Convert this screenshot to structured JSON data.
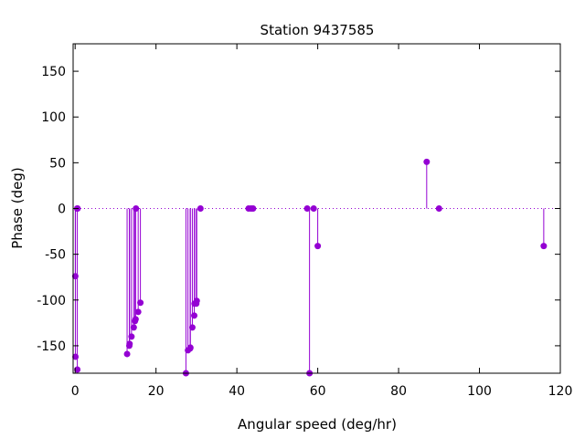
{
  "chart_data": {
    "type": "stem",
    "title": "Station 9437585",
    "xlabel": "Angular speed (deg/hr)",
    "ylabel": "Phase (deg)",
    "xlim": [
      -0.5,
      120
    ],
    "ylim": [
      -180,
      180
    ],
    "xticks": [
      0,
      20,
      40,
      60,
      80,
      100,
      120
    ],
    "yticks": [
      -150,
      -100,
      -50,
      0,
      50,
      100,
      150
    ],
    "xtick_labels": [
      "0",
      "20",
      "40",
      "60",
      "80",
      "100",
      "120"
    ],
    "ytick_labels": [
      "-150",
      "-100",
      "-50",
      "0",
      "50",
      "100",
      "150"
    ],
    "zero_line": "dotted",
    "color": "#9400d3",
    "series": [
      {
        "points": [
          {
            "x": 0.04,
            "y": -74
          },
          {
            "x": 0.08,
            "y": -162
          },
          {
            "x": 0.5,
            "y": 0
          },
          {
            "x": 0.54,
            "y": -176
          },
          {
            "x": 0.6,
            "y": 0
          },
          {
            "x": 12.85,
            "y": -159
          },
          {
            "x": 13.4,
            "y": -150
          },
          {
            "x": 13.47,
            "y": -148
          },
          {
            "x": 13.94,
            "y": -140
          },
          {
            "x": 14.5,
            "y": -130
          },
          {
            "x": 14.8,
            "y": -123
          },
          {
            "x": 14.96,
            "y": -121
          },
          {
            "x": 15.04,
            "y": 0
          },
          {
            "x": 15.59,
            "y": -113
          },
          {
            "x": 16.14,
            "y": -103
          },
          {
            "x": 27.4,
            "y": -180
          },
          {
            "x": 27.9,
            "y": -155
          },
          {
            "x": 28.44,
            "y": -153
          },
          {
            "x": 28.51,
            "y": -152
          },
          {
            "x": 28.99,
            "y": -130
          },
          {
            "x": 29.46,
            "y": -117
          },
          {
            "x": 29.53,
            "y": -104
          },
          {
            "x": 29.96,
            "y": -104
          },
          {
            "x": 30.08,
            "y": -101
          },
          {
            "x": 31.0,
            "y": 0
          },
          {
            "x": 42.9,
            "y": 0
          },
          {
            "x": 43.5,
            "y": 0
          },
          {
            "x": 44.0,
            "y": 0
          },
          {
            "x": 57.4,
            "y": 0
          },
          {
            "x": 57.97,
            "y": -180
          },
          {
            "x": 59.0,
            "y": 0
          },
          {
            "x": 60.0,
            "y": -41
          },
          {
            "x": 86.95,
            "y": 51
          },
          {
            "x": 90.0,
            "y": 0
          },
          {
            "x": 115.9,
            "y": -41
          }
        ]
      }
    ]
  }
}
